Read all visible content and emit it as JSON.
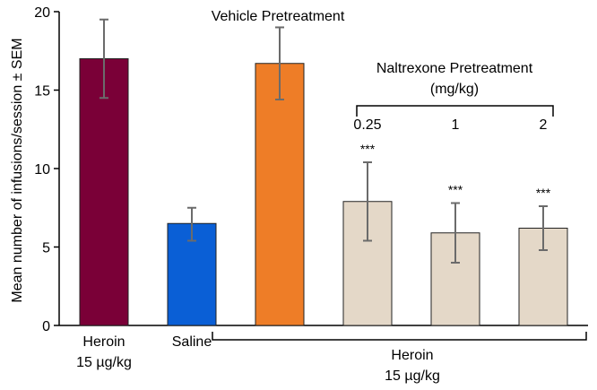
{
  "chart_data": {
    "type": "bar",
    "ylabel": "Mean number of infusions/session ± SEM",
    "ylim": [
      0,
      20
    ],
    "yticks": [
      "0",
      "5",
      "10",
      "15",
      "20"
    ],
    "grid": false,
    "bars": [
      {
        "value": 17.0,
        "err_low": 14.5,
        "err_high": 19.5,
        "color": "#7a0037",
        "label_line1": "Heroin",
        "label_line2": "15 µg/kg",
        "marker": ""
      },
      {
        "value": 6.5,
        "err_low": 5.4,
        "err_high": 7.5,
        "color": "#0a5fd6",
        "label_line1": "Saline",
        "label_line2": "",
        "marker": ""
      },
      {
        "value": 16.7,
        "err_low": 14.4,
        "err_high": 19.0,
        "color": "#ee7d27",
        "label_line1": "",
        "label_line2": "",
        "marker": ""
      },
      {
        "value": 7.9,
        "err_low": 5.4,
        "err_high": 10.4,
        "color": "#e4d8c8",
        "label_line1": "",
        "label_line2": "",
        "marker": "***"
      },
      {
        "value": 5.9,
        "err_low": 4.0,
        "err_high": 7.8,
        "color": "#e4d8c8",
        "label_line1": "",
        "label_line2": "",
        "marker": "***"
      },
      {
        "value": 6.2,
        "err_low": 4.8,
        "err_high": 7.6,
        "color": "#e4d8c8",
        "label_line1": "",
        "label_line2": "",
        "marker": "***"
      }
    ],
    "annotations": {
      "vehicle": "Vehicle Pretreatment",
      "naltrexone_line1": "Naltrexone Pretreatment",
      "naltrexone_line2": "(mg/kg)",
      "doses": [
        "0.25",
        "1",
        "2"
      ],
      "group_line1": "Heroin",
      "group_line2": "15 µg/kg"
    }
  }
}
